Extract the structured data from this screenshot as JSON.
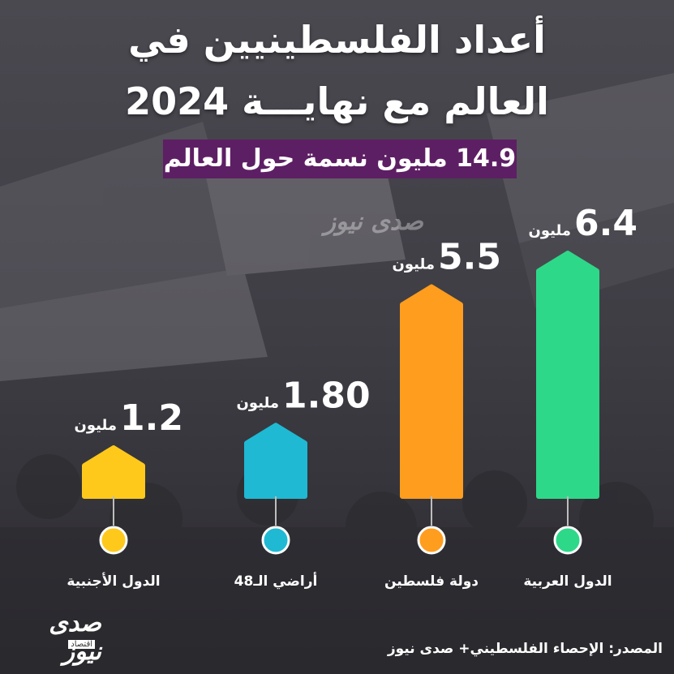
{
  "title_line_1": "أعداد الفلسطينيين في",
  "title_line_2": "العالم مع نهايـــة 2024",
  "subtitle": "14.9 مليون نسمة حول العالم",
  "source": "المصدر: الإحصاء الفلسطيني+ صدى نيوز",
  "logo": {
    "main": "صدى نيوز",
    "sub": "اقتصاد"
  },
  "colors": {
    "green": "#2ed889",
    "orange": "#ff9d1e",
    "teal": "#1fb9d3",
    "yellow": "#ffc91c",
    "subtitle_bg": "#5d1f63"
  },
  "chart_data": {
    "type": "bar",
    "unit_label": "مليون",
    "categories": [
      "الدول العربية",
      "دولة فلسطين",
      "أراضي الـ48",
      "الدول الأجنبية"
    ],
    "values": [
      6.4,
      5.5,
      1.8,
      1.2
    ],
    "value_labels": [
      "6.4",
      "5.5",
      "1.80",
      "1.2"
    ],
    "ylim": [
      0,
      6.4
    ],
    "grid": false,
    "title": "أعداد الفلسطينيين في العالم مع نهايـــة 2024",
    "subtitle": "14.9 مليون نسمة حول العالم"
  }
}
